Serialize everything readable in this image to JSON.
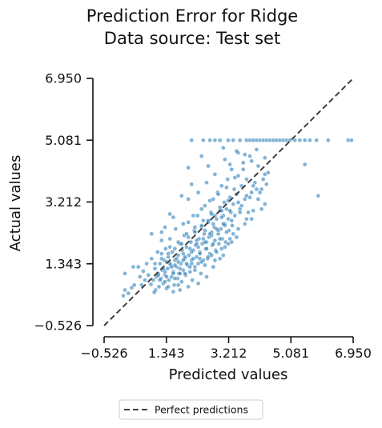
{
  "chart_data": {
    "type": "scatter",
    "title_line1": "Prediction Error for Ridge",
    "title_line2": "Data source: Test set",
    "xlabel": "Predicted values",
    "ylabel": "Actual values",
    "xlim": [
      -0.526,
      6.95
    ],
    "ylim": [
      -0.526,
      6.95
    ],
    "x_ticks": [
      -0.526,
      1.343,
      3.212,
      5.081,
      6.95
    ],
    "x_tick_labels": [
      "−0.526",
      "1.343",
      "3.212",
      "5.081",
      "6.950"
    ],
    "y_ticks": [
      -0.526,
      1.343,
      3.212,
      5.081,
      6.95
    ],
    "y_tick_labels": [
      "−0.526",
      "1.343",
      "3.212",
      "5.081",
      "6.950"
    ],
    "reference_line": {
      "name": "Perfect predictions",
      "x": [
        -0.526,
        6.95
      ],
      "y": [
        -0.526,
        6.95
      ],
      "style": "dashed",
      "color": "#3f3f3f"
    },
    "point_color": "#1f77b4",
    "grid": false,
    "legend_position": "bottom",
    "legend": {
      "entries": [
        "Perfect predictions"
      ]
    },
    "series": [
      {
        "values": [
          [
            0.05,
            0.38
          ],
          [
            0.1,
            0.55
          ],
          [
            0.2,
            0.45
          ],
          [
            0.3,
            0.62
          ],
          [
            0.38,
            0.7
          ],
          [
            0.55,
            0.95
          ],
          [
            0.6,
            0.7
          ],
          [
            0.65,
            1.12
          ],
          [
            0.7,
            0.85
          ],
          [
            0.75,
            1.35
          ],
          [
            0.8,
            1.0
          ],
          [
            0.88,
            0.72
          ],
          [
            0.9,
            1.5
          ],
          [
            0.95,
            0.85
          ],
          [
            1.0,
            1.2
          ],
          [
            1.02,
            0.55
          ],
          [
            1.05,
            0.95
          ],
          [
            1.08,
            1.7
          ],
          [
            1.1,
            1.05
          ],
          [
            1.12,
            0.65
          ],
          [
            1.15,
            1.35
          ],
          [
            1.18,
            0.9
          ],
          [
            1.2,
            2.05
          ],
          [
            1.22,
            1.15
          ],
          [
            1.25,
            0.75
          ],
          [
            1.28,
            1.45
          ],
          [
            1.3,
            1.0
          ],
          [
            1.32,
            1.8
          ],
          [
            1.35,
            0.6
          ],
          [
            1.38,
            1.2
          ],
          [
            1.4,
            1.55
          ],
          [
            1.42,
            0.85
          ],
          [
            1.45,
            2.1
          ],
          [
            1.48,
            1.3
          ],
          [
            1.5,
            0.95
          ],
          [
            1.52,
            1.7
          ],
          [
            1.55,
            1.1
          ],
          [
            1.58,
            0.7
          ],
          [
            1.6,
            1.45
          ],
          [
            1.62,
            2.4
          ],
          [
            1.65,
            1.25
          ],
          [
            1.68,
            0.9
          ],
          [
            1.7,
            1.6
          ],
          [
            1.72,
            1.05
          ],
          [
            1.75,
            1.95
          ],
          [
            1.78,
            1.35
          ],
          [
            1.8,
            0.8
          ],
          [
            1.82,
            1.75
          ],
          [
            1.85,
            1.15
          ],
          [
            1.88,
            2.2
          ],
          [
            1.9,
            1.5
          ],
          [
            1.92,
            1.0
          ],
          [
            1.95,
            1.85
          ],
          [
            1.98,
            1.3
          ],
          [
            2.0,
            2.6
          ],
          [
            2.02,
            1.6
          ],
          [
            2.05,
            1.1
          ],
          [
            2.08,
            2.0
          ],
          [
            2.1,
            1.45
          ],
          [
            2.12,
            0.85
          ],
          [
            2.15,
            1.75
          ],
          [
            2.18,
            2.35
          ],
          [
            2.2,
            1.25
          ],
          [
            2.22,
            1.9
          ],
          [
            2.25,
            1.55
          ],
          [
            2.28,
            2.8
          ],
          [
            2.3,
            1.35
          ],
          [
            2.32,
            2.1
          ],
          [
            2.35,
            1.7
          ],
          [
            2.38,
            1.05
          ],
          [
            2.4,
            2.45
          ],
          [
            2.42,
            1.95
          ],
          [
            2.45,
            1.45
          ],
          [
            2.48,
            2.25
          ],
          [
            2.5,
            3.1
          ],
          [
            2.52,
            1.8
          ],
          [
            2.55,
            2.0
          ],
          [
            2.58,
            1.5
          ],
          [
            2.6,
            2.6
          ],
          [
            2.62,
            2.15
          ],
          [
            2.65,
            1.65
          ],
          [
            2.68,
            2.9
          ],
          [
            2.7,
            2.3
          ],
          [
            2.72,
            1.9
          ],
          [
            2.75,
            3.3
          ],
          [
            2.78,
            2.45
          ],
          [
            2.8,
            2.05
          ],
          [
            2.82,
            1.75
          ],
          [
            2.85,
            2.7
          ],
          [
            2.88,
            3.5
          ],
          [
            2.9,
            2.25
          ],
          [
            2.92,
            1.95
          ],
          [
            2.95,
            2.95
          ],
          [
            2.98,
            2.4
          ],
          [
            3.0,
            3.7
          ],
          [
            3.02,
            2.1
          ],
          [
            3.05,
            2.8
          ],
          [
            3.08,
            3.2
          ],
          [
            3.1,
            2.55
          ],
          [
            3.12,
            2.0
          ],
          [
            3.15,
            3.0
          ],
          [
            3.18,
            3.9
          ],
          [
            3.2,
            2.7
          ],
          [
            3.22,
            2.35
          ],
          [
            3.25,
            3.35
          ],
          [
            3.28,
            2.9
          ],
          [
            3.3,
            4.2
          ],
          [
            3.32,
            2.5
          ],
          [
            3.35,
            3.15
          ],
          [
            3.38,
            3.6
          ],
          [
            3.4,
            2.8
          ],
          [
            3.45,
            3.45
          ],
          [
            3.5,
            4.0
          ],
          [
            3.55,
            3.0
          ],
          [
            3.6,
            3.7
          ],
          [
            3.65,
            4.4
          ],
          [
            3.7,
            3.3
          ],
          [
            3.75,
            3.9
          ],
          [
            3.8,
            2.9
          ],
          [
            3.85,
            4.6
          ],
          [
            3.9,
            3.5
          ],
          [
            4.0,
            3.8
          ],
          [
            4.1,
            4.3
          ],
          [
            4.2,
            3.6
          ],
          [
            4.3,
            4.05
          ],
          [
            0.1,
            1.05
          ],
          [
            0.35,
            1.25
          ],
          [
            0.9,
            2.25
          ],
          [
            1.3,
            2.45
          ],
          [
            1.55,
            2.75
          ],
          [
            2.0,
            3.3
          ],
          [
            2.3,
            3.5
          ],
          [
            2.55,
            3.8
          ],
          [
            2.8,
            4.05
          ],
          [
            3.1,
            4.5
          ],
          [
            1.8,
            3.4
          ],
          [
            2.1,
            3.75
          ],
          [
            2.6,
            4.3
          ],
          [
            3.5,
            4.7
          ],
          [
            2.4,
            4.6
          ],
          [
            2.0,
            4.25
          ],
          [
            3.6,
            3.1
          ],
          [
            3.95,
            2.95
          ],
          [
            4.1,
            3.3
          ],
          [
            4.3,
            3.15
          ],
          [
            3.2,
            1.95
          ],
          [
            3.05,
            1.6
          ],
          [
            2.75,
            1.25
          ],
          [
            2.55,
            0.95
          ],
          [
            2.3,
            0.75
          ],
          [
            2.0,
            0.65
          ],
          [
            1.75,
            0.55
          ],
          [
            1.55,
            0.5
          ],
          [
            0.98,
            0.48
          ],
          [
            1.4,
            0.65
          ],
          [
            1.7,
            0.7
          ],
          [
            2.95,
            1.5
          ],
          [
            3.35,
            2.25
          ],
          [
            3.7,
            2.55
          ],
          [
            3.9,
            2.7
          ],
          [
            4.2,
            3.0
          ],
          [
            1.1,
            1.0
          ],
          [
            1.3,
            1.1
          ],
          [
            1.5,
            1.25
          ],
          [
            1.7,
            1.4
          ],
          [
            1.9,
            1.55
          ],
          [
            2.1,
            1.7
          ],
          [
            2.3,
            1.85
          ],
          [
            2.5,
            2.0
          ],
          [
            2.7,
            2.2
          ],
          [
            2.9,
            2.35
          ],
          [
            3.1,
            2.5
          ],
          [
            3.3,
            2.65
          ],
          [
            1.25,
            1.2
          ],
          [
            1.45,
            1.35
          ],
          [
            1.65,
            1.5
          ],
          [
            1.85,
            1.65
          ],
          [
            2.05,
            1.8
          ],
          [
            2.25,
            1.95
          ],
          [
            2.45,
            2.1
          ],
          [
            2.65,
            2.25
          ],
          [
            2.85,
            2.4
          ],
          [
            3.05,
            2.55
          ],
          [
            1.15,
            0.85
          ],
          [
            1.35,
            0.95
          ],
          [
            1.55,
            1.05
          ],
          [
            1.75,
            1.2
          ],
          [
            1.95,
            1.35
          ],
          [
            2.15,
            1.5
          ],
          [
            2.35,
            1.65
          ],
          [
            2.55,
            1.8
          ],
          [
            2.75,
            1.95
          ],
          [
            2.95,
            2.1
          ],
          [
            1.2,
            1.5
          ],
          [
            1.4,
            1.65
          ],
          [
            1.6,
            1.8
          ],
          [
            1.8,
            1.95
          ],
          [
            2.0,
            2.15
          ],
          [
            2.2,
            2.3
          ],
          [
            2.4,
            2.5
          ],
          [
            2.6,
            2.65
          ],
          [
            2.8,
            2.8
          ],
          [
            3.0,
            2.95
          ],
          [
            1.35,
            1.4
          ],
          [
            1.6,
            1.3
          ],
          [
            1.85,
            1.45
          ],
          [
            2.1,
            1.35
          ],
          [
            2.35,
            1.5
          ],
          [
            2.6,
            1.55
          ],
          [
            2.85,
            1.7
          ],
          [
            3.1,
            1.85
          ],
          [
            3.3,
            2.0
          ],
          [
            3.45,
            2.15
          ],
          [
            1.0,
            1.35
          ],
          [
            1.2,
            1.65
          ],
          [
            1.45,
            1.85
          ],
          [
            1.7,
            2.0
          ],
          [
            1.95,
            2.25
          ],
          [
            2.2,
            2.45
          ],
          [
            2.45,
            2.65
          ],
          [
            2.7,
            2.85
          ],
          [
            2.95,
            3.05
          ],
          [
            3.2,
            3.25
          ],
          [
            1.3,
            0.8
          ],
          [
            1.6,
            0.9
          ],
          [
            1.9,
            1.05
          ],
          [
            2.2,
            1.15
          ],
          [
            2.5,
            1.3
          ],
          [
            2.8,
            1.45
          ],
          [
            3.0,
            1.8
          ],
          [
            3.25,
            2.1
          ],
          [
            3.5,
            2.4
          ],
          [
            3.75,
            2.7
          ],
          [
            1.75,
            1.05
          ],
          [
            2.05,
            1.25
          ],
          [
            2.4,
            1.4
          ],
          [
            2.7,
            1.6
          ],
          [
            3.15,
            2.3
          ],
          [
            3.55,
            2.9
          ],
          [
            3.85,
            3.35
          ],
          [
            4.05,
            3.6
          ],
          [
            4.25,
            3.9
          ],
          [
            4.4,
            4.1
          ],
          [
            2.25,
            2.05
          ],
          [
            2.5,
            2.35
          ],
          [
            2.75,
            2.55
          ],
          [
            3.0,
            2.75
          ],
          [
            3.25,
            2.95
          ],
          [
            3.5,
            3.2
          ],
          [
            3.75,
            3.4
          ],
          [
            3.95,
            3.7
          ],
          [
            4.15,
            3.5
          ],
          [
            4.35,
            3.75
          ],
          [
            1.85,
            2.55
          ],
          [
            2.15,
            2.8
          ],
          [
            2.4,
            3.0
          ],
          [
            2.65,
            3.25
          ],
          [
            2.9,
            3.45
          ],
          [
            3.15,
            3.65
          ],
          [
            3.4,
            3.95
          ],
          [
            3.65,
            4.2
          ],
          [
            3.9,
            4.45
          ],
          [
            4.05,
            4.8
          ],
          [
            2.1,
            5.081
          ],
          [
            2.45,
            5.081
          ],
          [
            2.65,
            5.081
          ],
          [
            2.8,
            5.081
          ],
          [
            2.95,
            5.081
          ],
          [
            3.2,
            5.081
          ],
          [
            3.35,
            5.081
          ],
          [
            3.55,
            5.081
          ],
          [
            3.75,
            5.081
          ],
          [
            3.85,
            5.081
          ],
          [
            3.95,
            5.081
          ],
          [
            4.05,
            5.081
          ],
          [
            4.15,
            5.081
          ],
          [
            4.25,
            5.081
          ],
          [
            4.35,
            5.081
          ],
          [
            4.45,
            5.081
          ],
          [
            4.55,
            5.081
          ],
          [
            4.65,
            5.081
          ],
          [
            4.75,
            5.081
          ],
          [
            4.85,
            5.081
          ],
          [
            4.95,
            5.081
          ],
          [
            5.05,
            5.081
          ],
          [
            5.2,
            5.081
          ],
          [
            5.35,
            5.081
          ],
          [
            5.5,
            5.081
          ],
          [
            5.65,
            5.081
          ],
          [
            5.85,
            5.081
          ],
          [
            6.2,
            5.081
          ],
          [
            6.8,
            5.081
          ],
          [
            6.9,
            5.081
          ],
          [
            3.45,
            4.75
          ],
          [
            4.3,
            4.55
          ],
          [
            3.25,
            4.35
          ],
          [
            3.7,
            4.65
          ],
          [
            5.5,
            4.35
          ],
          [
            5.9,
            3.4
          ],
          [
            3.05,
            4.85
          ],
          [
            1.45,
            2.85
          ],
          [
            1.2,
            2.3
          ],
          [
            0.5,
            1.25
          ]
        ]
      }
    ]
  }
}
